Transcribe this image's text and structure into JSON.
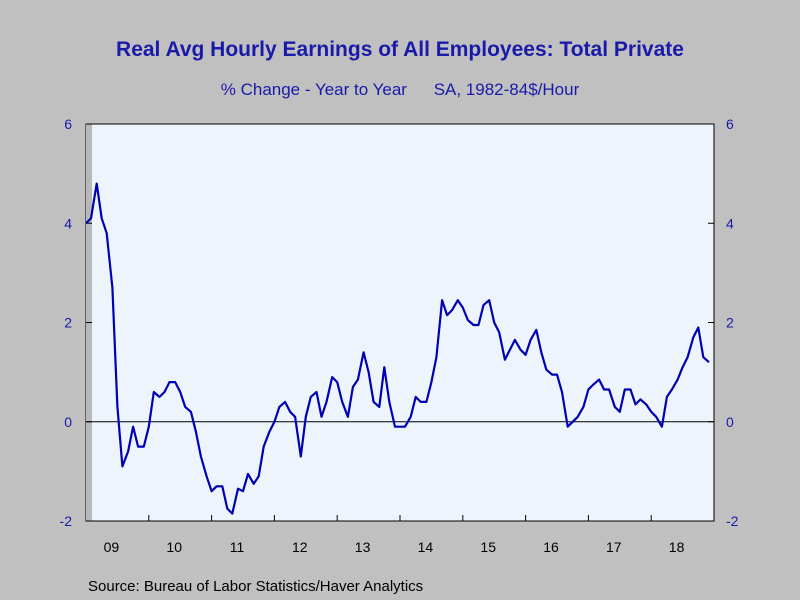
{
  "chart_data": {
    "type": "line",
    "title": "Real Avg Hourly Earnings of All Employees: Total Private",
    "subtitle_left": "% Change - Year to Year",
    "subtitle_right": "SA, 1982-84$/Hour",
    "source": "Source:  Bureau of Labor Statistics/Haver Analytics",
    "ylim": [
      -2,
      6
    ],
    "yticks": [
      -2,
      0,
      2,
      4,
      6
    ],
    "xlim": [
      2009.0,
      2019.0
    ],
    "xtick_labels": [
      "09",
      "10",
      "11",
      "12",
      "13",
      "14",
      "15",
      "16",
      "17",
      "18"
    ],
    "xtick_years": [
      2009,
      2010,
      2011,
      2012,
      2013,
      2014,
      2015,
      2016,
      2017,
      2018
    ],
    "grid": false,
    "zero_line": true,
    "line_color": "#0000b4",
    "series": [
      {
        "x": [
          2009.0,
          2009.08,
          2009.17,
          2009.25,
          2009.33,
          2009.42,
          2009.5,
          2009.58,
          2009.67,
          2009.75,
          2009.83,
          2009.92,
          2010.0,
          2010.08,
          2010.17,
          2010.25,
          2010.33,
          2010.42,
          2010.5,
          2010.58,
          2010.67,
          2010.75,
          2010.83,
          2010.92,
          2011.0,
          2011.08,
          2011.17,
          2011.25,
          2011.33,
          2011.42,
          2011.5,
          2011.58,
          2011.67,
          2011.75,
          2011.83,
          2011.92,
          2012.0,
          2012.08,
          2012.17,
          2012.25,
          2012.33,
          2012.42,
          2012.5,
          2012.58,
          2012.67,
          2012.75,
          2012.83,
          2012.92,
          2013.0,
          2013.08,
          2013.17,
          2013.25,
          2013.33,
          2013.42,
          2013.5,
          2013.58,
          2013.67,
          2013.75,
          2013.83,
          2013.92,
          2014.0,
          2014.08,
          2014.17,
          2014.25,
          2014.33,
          2014.42,
          2014.5,
          2014.58,
          2014.67,
          2014.75,
          2014.83,
          2014.92,
          2015.0,
          2015.08,
          2015.17,
          2015.25,
          2015.33,
          2015.42,
          2015.5,
          2015.58,
          2015.67,
          2015.75,
          2015.83,
          2015.92,
          2016.0,
          2016.08,
          2016.17,
          2016.25,
          2016.33,
          2016.42,
          2016.5,
          2016.58,
          2016.67,
          2016.75,
          2016.83,
          2016.92,
          2017.0,
          2017.08,
          2017.17,
          2017.25,
          2017.33,
          2017.42,
          2017.5,
          2017.58,
          2017.67,
          2017.75,
          2017.83,
          2017.92,
          2018.0,
          2018.08,
          2018.17,
          2018.25,
          2018.33,
          2018.42,
          2018.5,
          2018.58,
          2018.67,
          2018.75,
          2018.83,
          2018.92
        ],
        "values": [
          4.0,
          4.1,
          4.8,
          4.1,
          3.8,
          2.7,
          0.3,
          -0.9,
          -0.6,
          -0.1,
          -0.5,
          -0.5,
          -0.1,
          0.6,
          0.5,
          0.6,
          0.8,
          0.8,
          0.6,
          0.3,
          0.2,
          -0.2,
          -0.7,
          -1.1,
          -1.4,
          -1.3,
          -1.3,
          -1.75,
          -1.85,
          -1.35,
          -1.4,
          -1.05,
          -1.25,
          -1.1,
          -0.5,
          -0.2,
          0.0,
          0.3,
          0.4,
          0.2,
          0.1,
          -0.7,
          0.1,
          0.5,
          0.6,
          0.1,
          0.4,
          0.9,
          0.8,
          0.4,
          0.1,
          0.7,
          0.85,
          1.4,
          1.0,
          0.4,
          0.3,
          1.1,
          0.4,
          -0.1,
          -0.1,
          -0.1,
          0.1,
          0.5,
          0.4,
          0.4,
          0.8,
          1.3,
          2.45,
          2.15,
          2.25,
          2.45,
          2.3,
          2.05,
          1.95,
          1.95,
          2.35,
          2.45,
          2.0,
          1.8,
          1.25,
          1.45,
          1.65,
          1.45,
          1.35,
          1.65,
          1.85,
          1.4,
          1.05,
          0.95,
          0.95,
          0.6,
          -0.1,
          0.0,
          0.1,
          0.3,
          0.65,
          0.75,
          0.85,
          0.65,
          0.65,
          0.3,
          0.2,
          0.65,
          0.65,
          0.35,
          0.45,
          0.35,
          0.2,
          0.1,
          -0.1,
          0.5,
          0.65,
          0.85,
          1.1,
          1.3,
          1.7,
          1.9,
          1.3,
          1.2
        ]
      }
    ]
  }
}
